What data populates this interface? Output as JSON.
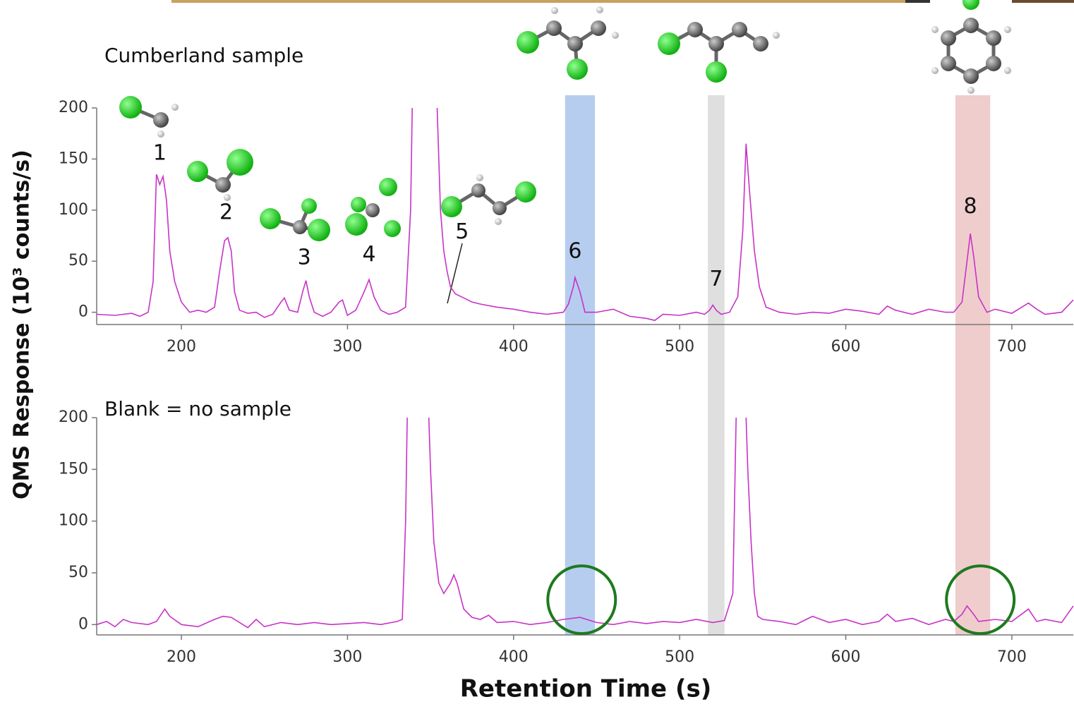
{
  "chart_data": [
    {
      "type": "line",
      "title": "Cumberland  sample",
      "ylabel": "QMS Response (10³ counts/s)",
      "xlim": [
        149,
        737
      ],
      "ylim": [
        -12,
        200
      ],
      "xticks": [
        200,
        300,
        400,
        500,
        600,
        700
      ],
      "yticks": [
        0,
        50,
        100,
        150,
        200
      ],
      "series": [
        {
          "color": "#c832c8",
          "x": [
            149,
            160,
            170,
            175,
            180,
            183,
            185,
            187,
            189,
            191,
            193,
            196,
            200,
            205,
            210,
            215,
            220,
            223,
            226,
            228,
            230,
            232,
            235,
            240,
            245,
            250,
            255,
            260,
            262,
            265,
            270,
            273,
            275,
            277,
            280,
            285,
            290,
            295,
            297,
            300,
            305,
            310,
            313,
            316,
            320,
            325,
            330,
            335,
            338,
            339,
            346,
            354,
            356,
            358,
            360,
            362,
            365,
            370,
            375,
            380,
            390,
            400,
            410,
            420,
            425,
            430,
            433,
            436,
            437,
            440,
            443,
            450,
            460,
            470,
            480,
            485,
            490,
            500,
            510,
            515,
            518,
            520,
            522,
            525,
            530,
            535,
            538,
            540,
            542,
            545,
            548,
            552,
            560,
            570,
            580,
            590,
            600,
            610,
            620,
            625,
            630,
            640,
            650,
            660,
            665,
            670,
            673,
            675,
            677,
            680,
            685,
            690,
            700,
            710,
            715,
            720,
            730,
            737
          ],
          "values": [
            -2,
            -3,
            -1,
            -4,
            0,
            30,
            135,
            125,
            133,
            110,
            60,
            30,
            10,
            0,
            2,
            0,
            5,
            40,
            70,
            73,
            60,
            20,
            2,
            -1,
            0,
            -5,
            -2,
            10,
            14,
            2,
            0,
            20,
            31,
            15,
            0,
            -4,
            0,
            10,
            12,
            -3,
            2,
            20,
            32,
            15,
            2,
            -2,
            0,
            5,
            100,
            200,
            null,
            200,
            100,
            60,
            40,
            25,
            18,
            14,
            10,
            8,
            5,
            3,
            0,
            -2,
            -1,
            0,
            8,
            25,
            34,
            20,
            0,
            0,
            3,
            -4,
            -6,
            -8,
            -2,
            -3,
            0,
            -2,
            2,
            7,
            2,
            -2,
            0,
            15,
            80,
            165,
            120,
            60,
            25,
            5,
            0,
            -2,
            0,
            -1,
            3,
            1,
            -2,
            6,
            2,
            -2,
            3,
            0,
            0,
            10,
            50,
            77,
            55,
            15,
            0,
            3,
            -1,
            9,
            3,
            -2,
            0,
            12
          ]
        }
      ],
      "annotations": [
        {
          "text": "1",
          "x": 187,
          "y": 155
        },
        {
          "text": "2",
          "x": 227,
          "y": 97
        },
        {
          "text": "3",
          "x": 274,
          "y": 53
        },
        {
          "text": "4",
          "x": 313,
          "y": 56
        },
        {
          "text": "5",
          "x": 369,
          "y": 78
        },
        {
          "text": "6",
          "x": 437,
          "y": 59
        },
        {
          "text": "7",
          "x": 522,
          "y": 32
        },
        {
          "text": "8",
          "x": 675,
          "y": 103
        }
      ]
    },
    {
      "type": "line",
      "title": "Blank = no sample",
      "xlabel": "Retention Time (s)",
      "xlim": [
        149,
        737
      ],
      "ylim": [
        -10,
        200
      ],
      "xticks": [
        200,
        300,
        400,
        500,
        600,
        700
      ],
      "yticks": [
        0,
        50,
        100,
        150,
        200
      ],
      "series": [
        {
          "color": "#c832c8",
          "x": [
            149,
            155,
            160,
            165,
            170,
            180,
            185,
            190,
            193,
            200,
            210,
            220,
            225,
            230,
            240,
            245,
            250,
            260,
            270,
            280,
            290,
            300,
            310,
            320,
            330,
            333,
            335,
            336,
            342,
            349,
            350,
            352,
            355,
            358,
            362,
            364,
            366,
            370,
            375,
            380,
            385,
            390,
            400,
            410,
            420,
            430,
            440,
            450,
            460,
            470,
            480,
            490,
            500,
            510,
            520,
            527,
            532,
            534,
            537,
            540,
            541,
            543,
            545,
            547,
            550,
            560,
            570,
            580,
            590,
            600,
            610,
            620,
            625,
            630,
            640,
            650,
            660,
            665,
            670,
            673,
            677,
            680,
            690,
            700,
            710,
            715,
            720,
            730,
            737
          ],
          "values": [
            0,
            3,
            -2,
            5,
            2,
            0,
            3,
            15,
            8,
            0,
            -2,
            5,
            8,
            7,
            -3,
            5,
            -2,
            2,
            0,
            2,
            0,
            1,
            2,
            0,
            3,
            5,
            100,
            200,
            null,
            200,
            150,
            80,
            40,
            30,
            40,
            48,
            40,
            15,
            7,
            5,
            9,
            2,
            3,
            0,
            2,
            5,
            7,
            2,
            0,
            3,
            1,
            3,
            2,
            5,
            2,
            4,
            30,
            200,
            null,
            200,
            150,
            80,
            30,
            8,
            5,
            3,
            0,
            8,
            2,
            5,
            0,
            3,
            10,
            3,
            6,
            0,
            5,
            3,
            10,
            18,
            10,
            3,
            5,
            3,
            15,
            3,
            5,
            2,
            18
          ]
        }
      ],
      "circles": [
        {
          "x": 441,
          "y": 24
        },
        {
          "x": 681,
          "y": 24
        }
      ]
    }
  ],
  "bands": [
    {
      "x0": 431,
      "x1": 449,
      "color": "#a9c4ec"
    },
    {
      "x0": 517,
      "x1": 527,
      "color": "#d9d9d9"
    },
    {
      "x0": 666,
      "x1": 687,
      "color": "#ecc4c4"
    }
  ]
}
